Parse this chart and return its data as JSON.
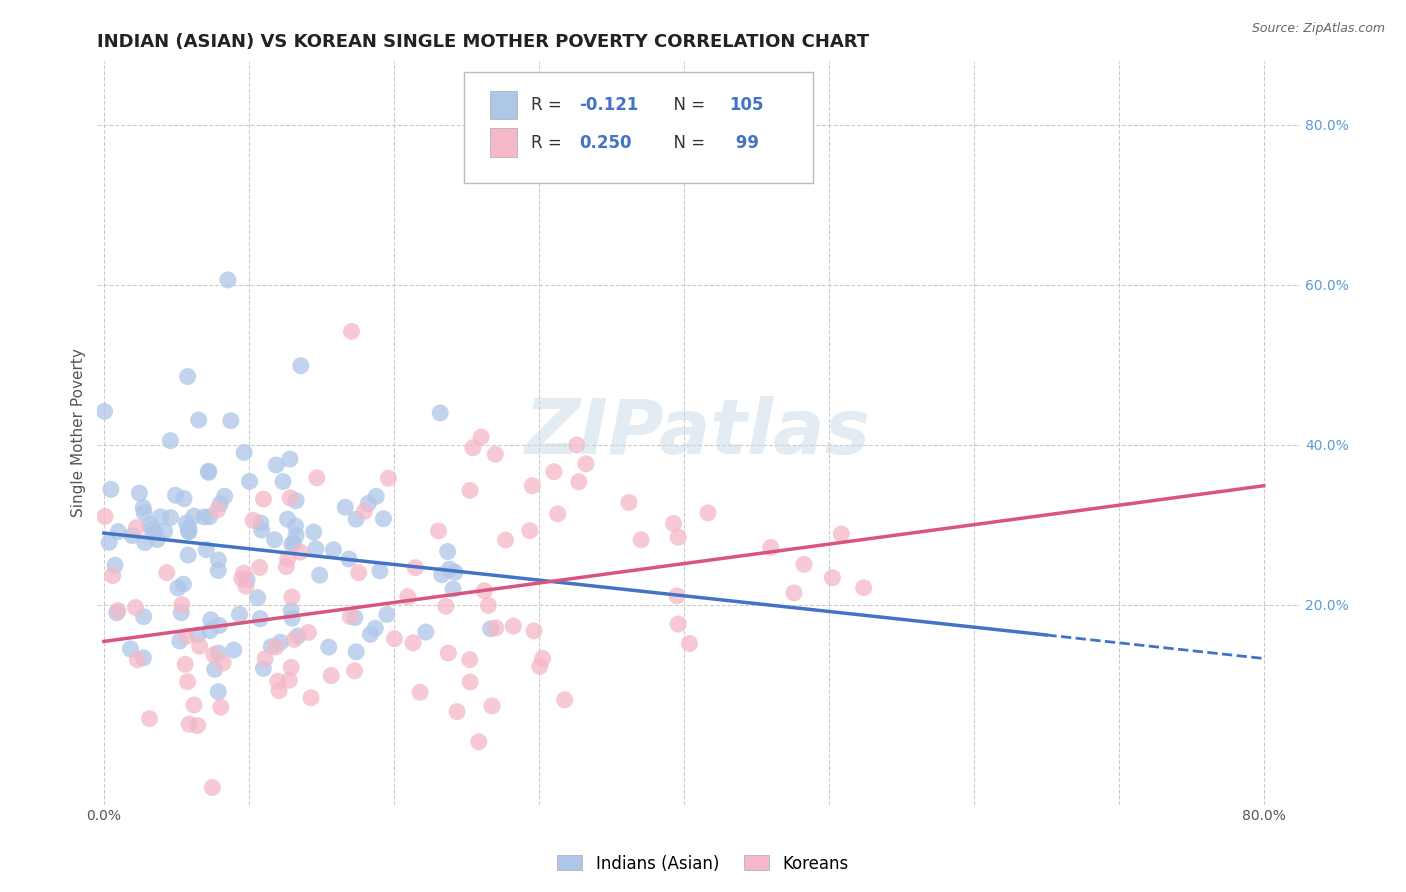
{
  "title": "INDIAN (ASIAN) VS KOREAN SINGLE MOTHER POVERTY CORRELATION CHART",
  "source_text": "Source: ZipAtlas.com",
  "ylabel": "Single Mother Poverty",
  "x_tick_positions": [
    0.0,
    0.1,
    0.2,
    0.3,
    0.4,
    0.5,
    0.6,
    0.7,
    0.8
  ],
  "y_ticks": [
    0.2,
    0.4,
    0.6,
    0.8
  ],
  "xlim": [
    -0.005,
    0.825
  ],
  "ylim": [
    -0.05,
    0.88
  ],
  "indian_color": "#aec6e8",
  "korean_color": "#f4b8c8",
  "indian_line_color": "#4472c4",
  "korean_line_color": "#d9547e",
  "R_indian": -0.121,
  "N_indian": 105,
  "R_korean": 0.25,
  "N_korean": 99,
  "legend_labels": [
    "Indians (Asian)",
    "Koreans"
  ],
  "watermark": "ZIPatlas",
  "background_color": "#ffffff",
  "grid_color": "#cccccc",
  "title_fontsize": 13,
  "axis_label_fontsize": 11,
  "tick_fontsize": 10
}
